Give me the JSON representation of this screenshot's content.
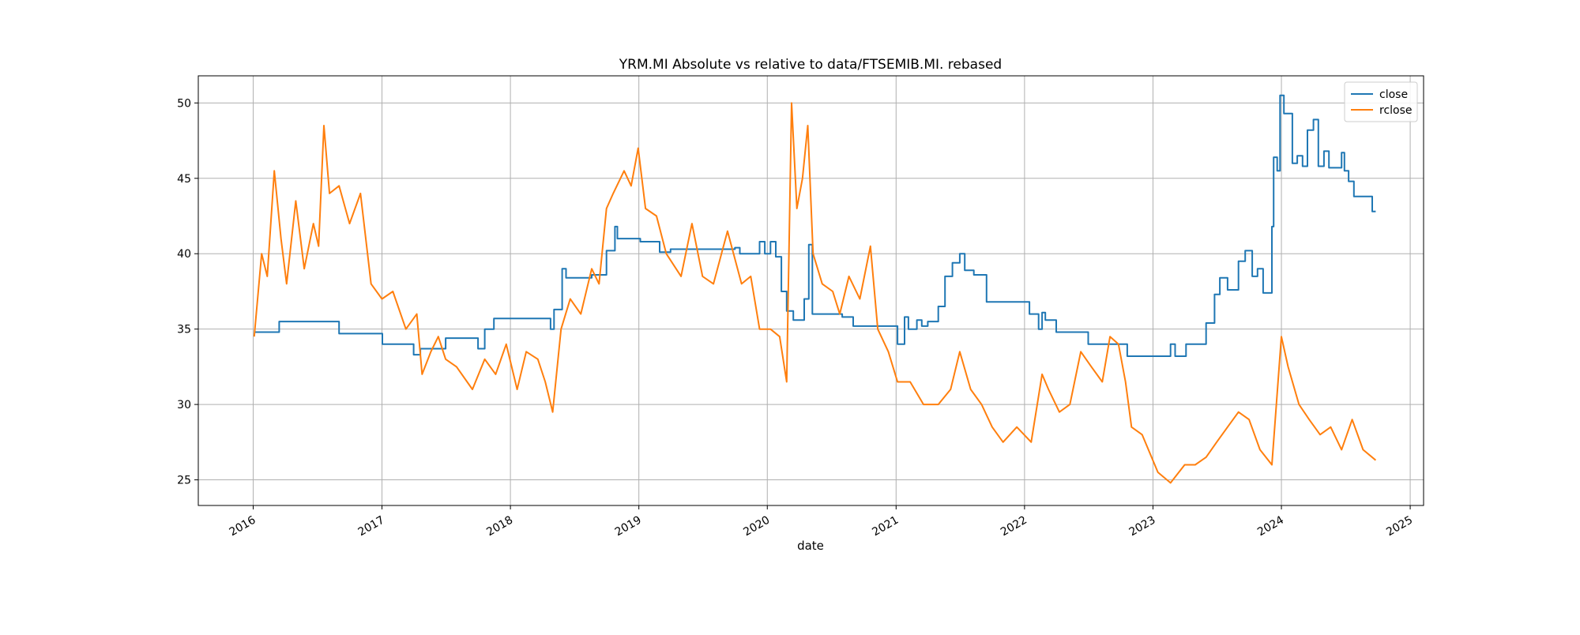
{
  "chart_data": {
    "type": "line",
    "title": "YRM.MI Absolute vs relative to data/FTSEMIB.MI. rebased",
    "xlabel": "date",
    "ylabel": "",
    "xlim": [
      "2015-07-29",
      "2025-02-08"
    ],
    "ylim": [
      23.3,
      51.8
    ],
    "grid": true,
    "legend_position": "top-right",
    "x_ticks": [
      "2016",
      "2017",
      "2018",
      "2019",
      "2020",
      "2021",
      "2022",
      "2023",
      "2024",
      "2025"
    ],
    "y_ticks": [
      25,
      30,
      35,
      40,
      45,
      50
    ],
    "series": [
      {
        "name": "close",
        "color": "#1f77b4",
        "step": true,
        "points": [
          [
            "2016-01-04",
            34.8
          ],
          [
            "2016-03-15",
            35.5
          ],
          [
            "2016-09-01",
            34.7
          ],
          [
            "2017-01-02",
            34.0
          ],
          [
            "2017-04-01",
            33.3
          ],
          [
            "2017-04-20",
            33.7
          ],
          [
            "2017-07-01",
            34.4
          ],
          [
            "2017-10-01",
            33.7
          ],
          [
            "2017-10-20",
            35.0
          ],
          [
            "2017-11-15",
            35.7
          ],
          [
            "2018-04-25",
            35.0
          ],
          [
            "2018-05-05",
            36.3
          ],
          [
            "2018-05-28",
            39.0
          ],
          [
            "2018-06-08",
            38.4
          ],
          [
            "2018-08-20",
            38.6
          ],
          [
            "2018-10-01",
            40.2
          ],
          [
            "2018-10-25",
            41.8
          ],
          [
            "2018-11-01",
            41.0
          ],
          [
            "2019-01-05",
            40.8
          ],
          [
            "2019-03-01",
            40.1
          ],
          [
            "2019-04-01",
            40.3
          ],
          [
            "2019-10-01",
            40.4
          ],
          [
            "2019-10-15",
            40.0
          ],
          [
            "2019-12-10",
            40.8
          ],
          [
            "2019-12-25",
            40.0
          ],
          [
            "2020-01-10",
            40.8
          ],
          [
            "2020-01-25",
            39.8
          ],
          [
            "2020-02-10",
            37.5
          ],
          [
            "2020-02-25",
            36.2
          ],
          [
            "2020-03-15",
            35.6
          ],
          [
            "2020-04-15",
            37.0
          ],
          [
            "2020-04-28",
            40.6
          ],
          [
            "2020-05-08",
            36.0
          ],
          [
            "2020-08-01",
            35.8
          ],
          [
            "2020-09-01",
            35.2
          ],
          [
            "2021-01-05",
            34.0
          ],
          [
            "2021-01-25",
            35.8
          ],
          [
            "2021-02-05",
            35.0
          ],
          [
            "2021-03-01",
            35.6
          ],
          [
            "2021-03-15",
            35.2
          ],
          [
            "2021-04-01",
            35.5
          ],
          [
            "2021-05-01",
            36.5
          ],
          [
            "2021-05-20",
            38.5
          ],
          [
            "2021-06-10",
            39.4
          ],
          [
            "2021-07-01",
            40.0
          ],
          [
            "2021-07-15",
            38.9
          ],
          [
            "2021-08-10",
            38.6
          ],
          [
            "2021-09-15",
            36.8
          ],
          [
            "2022-01-15",
            36.0
          ],
          [
            "2022-02-10",
            35.0
          ],
          [
            "2022-02-20",
            36.1
          ],
          [
            "2022-03-01",
            35.6
          ],
          [
            "2022-04-01",
            34.8
          ],
          [
            "2022-07-01",
            34.0
          ],
          [
            "2022-10-20",
            33.2
          ],
          [
            "2023-02-20",
            34.0
          ],
          [
            "2023-03-05",
            33.2
          ],
          [
            "2023-04-05",
            34.0
          ],
          [
            "2023-06-01",
            35.4
          ],
          [
            "2023-06-25",
            37.3
          ],
          [
            "2023-07-10",
            38.4
          ],
          [
            "2023-08-01",
            37.6
          ],
          [
            "2023-09-01",
            39.5
          ],
          [
            "2023-09-20",
            40.2
          ],
          [
            "2023-10-10",
            38.5
          ],
          [
            "2023-10-25",
            39.0
          ],
          [
            "2023-11-10",
            37.4
          ],
          [
            "2023-12-05",
            41.8
          ],
          [
            "2023-12-10",
            46.4
          ],
          [
            "2023-12-20",
            45.5
          ],
          [
            "2023-12-28",
            50.5
          ],
          [
            "2024-01-08",
            49.3
          ],
          [
            "2024-02-01",
            46.0
          ],
          [
            "2024-02-15",
            46.5
          ],
          [
            "2024-03-01",
            45.8
          ],
          [
            "2024-03-15",
            48.2
          ],
          [
            "2024-04-01",
            48.9
          ],
          [
            "2024-04-15",
            45.8
          ],
          [
            "2024-05-01",
            46.8
          ],
          [
            "2024-05-15",
            45.7
          ],
          [
            "2024-06-20",
            46.7
          ],
          [
            "2024-06-28",
            45.5
          ],
          [
            "2024-07-10",
            44.8
          ],
          [
            "2024-07-25",
            43.8
          ],
          [
            "2024-09-15",
            42.8
          ],
          [
            "2024-09-25",
            42.8
          ]
        ]
      },
      {
        "name": "rclose",
        "color": "#ff7f0e",
        "step": false,
        "points": [
          [
            "2016-01-04",
            34.5
          ],
          [
            "2016-01-25",
            40.0
          ],
          [
            "2016-02-10",
            38.5
          ],
          [
            "2016-03-01",
            45.5
          ],
          [
            "2016-03-20",
            41.0
          ],
          [
            "2016-04-05",
            38.0
          ],
          [
            "2016-05-01",
            43.5
          ],
          [
            "2016-05-25",
            39.0
          ],
          [
            "2016-06-20",
            42.0
          ],
          [
            "2016-07-05",
            40.5
          ],
          [
            "2016-07-20",
            48.5
          ],
          [
            "2016-08-05",
            44.0
          ],
          [
            "2016-09-01",
            44.5
          ],
          [
            "2016-10-01",
            42.0
          ],
          [
            "2016-11-01",
            44.0
          ],
          [
            "2016-12-01",
            38.0
          ],
          [
            "2017-01-01",
            37.0
          ],
          [
            "2017-02-01",
            37.5
          ],
          [
            "2017-03-10",
            35.0
          ],
          [
            "2017-04-10",
            36.0
          ],
          [
            "2017-04-25",
            32.0
          ],
          [
            "2017-05-20",
            33.5
          ],
          [
            "2017-06-10",
            34.5
          ],
          [
            "2017-07-01",
            33.0
          ],
          [
            "2017-08-01",
            32.5
          ],
          [
            "2017-09-15",
            31.0
          ],
          [
            "2017-10-20",
            33.0
          ],
          [
            "2017-11-20",
            32.0
          ],
          [
            "2017-12-20",
            34.0
          ],
          [
            "2018-01-20",
            31.0
          ],
          [
            "2018-02-15",
            33.5
          ],
          [
            "2018-03-20",
            33.0
          ],
          [
            "2018-04-10",
            31.5
          ],
          [
            "2018-05-01",
            29.5
          ],
          [
            "2018-05-25",
            35.0
          ],
          [
            "2018-06-20",
            37.0
          ],
          [
            "2018-07-20",
            36.0
          ],
          [
            "2018-08-20",
            39.0
          ],
          [
            "2018-09-10",
            38.0
          ],
          [
            "2018-10-01",
            43.0
          ],
          [
            "2018-10-20",
            44.0
          ],
          [
            "2018-11-20",
            45.5
          ],
          [
            "2018-12-10",
            44.5
          ],
          [
            "2018-12-30",
            47.0
          ],
          [
            "2019-01-20",
            43.0
          ],
          [
            "2019-02-20",
            42.5
          ],
          [
            "2019-03-20",
            40.0
          ],
          [
            "2019-05-01",
            38.5
          ],
          [
            "2019-06-01",
            42.0
          ],
          [
            "2019-07-01",
            38.5
          ],
          [
            "2019-08-01",
            38.0
          ],
          [
            "2019-09-10",
            41.5
          ],
          [
            "2019-10-20",
            38.0
          ],
          [
            "2019-11-15",
            38.5
          ],
          [
            "2019-12-10",
            35.0
          ],
          [
            "2020-01-10",
            35.0
          ],
          [
            "2020-02-05",
            34.5
          ],
          [
            "2020-02-25",
            31.5
          ],
          [
            "2020-03-10",
            50.0
          ],
          [
            "2020-03-25",
            43.0
          ],
          [
            "2020-04-10",
            45.0
          ],
          [
            "2020-04-25",
            48.5
          ],
          [
            "2020-05-10",
            40.0
          ],
          [
            "2020-06-05",
            38.0
          ],
          [
            "2020-07-05",
            37.5
          ],
          [
            "2020-07-25",
            36.0
          ],
          [
            "2020-08-20",
            38.5
          ],
          [
            "2020-09-20",
            37.0
          ],
          [
            "2020-10-20",
            40.5
          ],
          [
            "2020-11-10",
            35.0
          ],
          [
            "2020-12-10",
            33.5
          ],
          [
            "2021-01-05",
            31.5
          ],
          [
            "2021-02-10",
            31.5
          ],
          [
            "2021-03-20",
            30.0
          ],
          [
            "2021-05-01",
            30.0
          ],
          [
            "2021-06-05",
            31.0
          ],
          [
            "2021-07-01",
            33.5
          ],
          [
            "2021-08-01",
            31.0
          ],
          [
            "2021-09-01",
            30.0
          ],
          [
            "2021-10-01",
            28.5
          ],
          [
            "2021-11-01",
            27.5
          ],
          [
            "2021-12-10",
            28.5
          ],
          [
            "2022-01-20",
            27.5
          ],
          [
            "2022-02-20",
            32.0
          ],
          [
            "2022-03-10",
            31.0
          ],
          [
            "2022-04-10",
            29.5
          ],
          [
            "2022-05-10",
            30.0
          ],
          [
            "2022-06-10",
            33.5
          ],
          [
            "2022-07-10",
            32.5
          ],
          [
            "2022-08-10",
            31.5
          ],
          [
            "2022-09-01",
            34.5
          ],
          [
            "2022-09-25",
            34.0
          ],
          [
            "2022-10-15",
            31.5
          ],
          [
            "2022-11-01",
            28.5
          ],
          [
            "2022-12-01",
            28.0
          ],
          [
            "2023-01-15",
            25.5
          ],
          [
            "2023-02-20",
            24.8
          ],
          [
            "2023-04-01",
            26.0
          ],
          [
            "2023-05-01",
            26.0
          ],
          [
            "2023-06-01",
            26.5
          ],
          [
            "2023-07-01",
            27.5
          ],
          [
            "2023-08-01",
            28.5
          ],
          [
            "2023-09-01",
            29.5
          ],
          [
            "2023-10-01",
            29.0
          ],
          [
            "2023-11-01",
            27.0
          ],
          [
            "2023-12-05",
            26.0
          ],
          [
            "2024-01-01",
            34.5
          ],
          [
            "2024-01-20",
            32.5
          ],
          [
            "2024-02-20",
            30.0
          ],
          [
            "2024-03-20",
            29.0
          ],
          [
            "2024-04-20",
            28.0
          ],
          [
            "2024-05-20",
            28.5
          ],
          [
            "2024-06-20",
            27.0
          ],
          [
            "2024-07-20",
            29.0
          ],
          [
            "2024-08-20",
            27.0
          ],
          [
            "2024-09-25",
            26.3
          ]
        ]
      }
    ]
  }
}
